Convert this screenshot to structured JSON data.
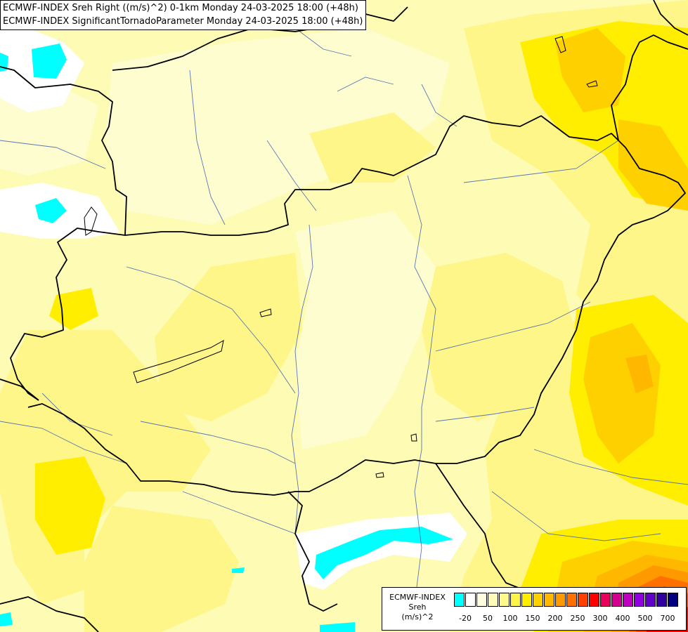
{
  "title": {
    "line1": "ECMWF-INDEX Sreh Right ((m/s)^2) 0-1km Monday 24-03-2025 18:00 (+48h)",
    "line2": "ECMWF-INDEX SignificantTornadoParameter Monday 24-03-2025 18:00 (+48h)"
  },
  "legend": {
    "line1": "ECMWF-INDEX",
    "line2": "Sreh",
    "line3": "(m/s)^2",
    "colors": [
      "#00ffff",
      "#ffffff",
      "#fffde0",
      "#fffbb8",
      "#fff88a",
      "#fff44a",
      "#ffee00",
      "#ffd000",
      "#ffb700",
      "#ff9900",
      "#ff7000",
      "#ff4000",
      "#ff0000",
      "#e8005a",
      "#d40090",
      "#c000c0",
      "#9000e0",
      "#6000c8",
      "#3000a0",
      "#000080"
    ],
    "ticks": [
      "-20",
      "50",
      "100",
      "150",
      "200",
      "250",
      "300",
      "400",
      "500",
      "700"
    ]
  }
}
